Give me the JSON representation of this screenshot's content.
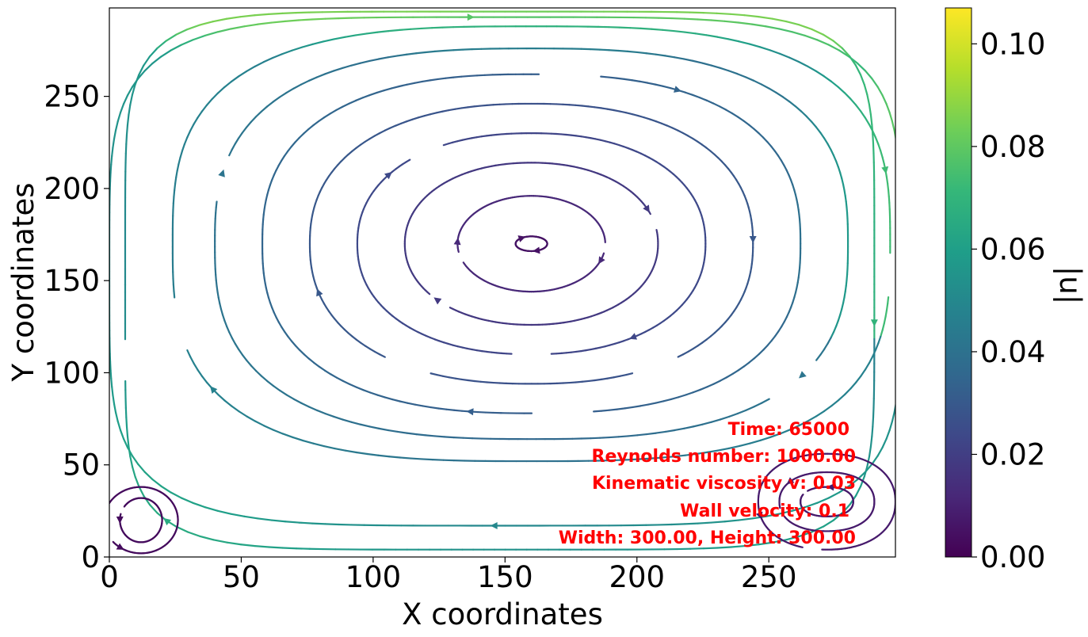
{
  "chart_data": {
    "type": "streamplot",
    "xlabel": "X coordinates",
    "ylabel": "Y coordinates",
    "xlim": [
      0,
      298
    ],
    "ylim": [
      0,
      298
    ],
    "x_ticks": [
      0,
      50,
      100,
      150,
      200,
      250
    ],
    "y_ticks": [
      0,
      50,
      100,
      150,
      200,
      250
    ],
    "x_tick_labels": [
      "0",
      "50",
      "100",
      "150",
      "200",
      "250"
    ],
    "y_tick_labels": [
      "0",
      "50",
      "100",
      "150",
      "200",
      "250"
    ],
    "colorbar": {
      "label": "|u|",
      "colormap": "viridis",
      "range": [
        0,
        0.107
      ],
      "ticks": [
        0,
        0.02,
        0.04,
        0.06,
        0.08,
        0.1
      ],
      "tick_labels": [
        "0.00",
        "0.02",
        "0.04",
        "0.06",
        "0.08",
        "0.10"
      ]
    },
    "vortices": [
      {
        "name": "primary",
        "center": [
          160,
          170
        ]
      },
      {
        "name": "bottom-left",
        "center": [
          12,
          20
        ]
      },
      {
        "name": "bottom-right",
        "center": [
          272,
          30
        ]
      }
    ],
    "annotations": [
      "Time: 65000",
      "Reynolds number: 1000.00",
      "Kinematic viscosity v: 0.03",
      "Wall velocity: 0.1",
      "Width: 300.00, Height: 300.00"
    ],
    "colors": {
      "annotation": "#ff0000",
      "viridis_stops": [
        "#440154",
        "#482878",
        "#3e4989",
        "#31688e",
        "#26828e",
        "#1f9e89",
        "#35b779",
        "#6ece58",
        "#b5de2b",
        "#fde725"
      ]
    }
  }
}
